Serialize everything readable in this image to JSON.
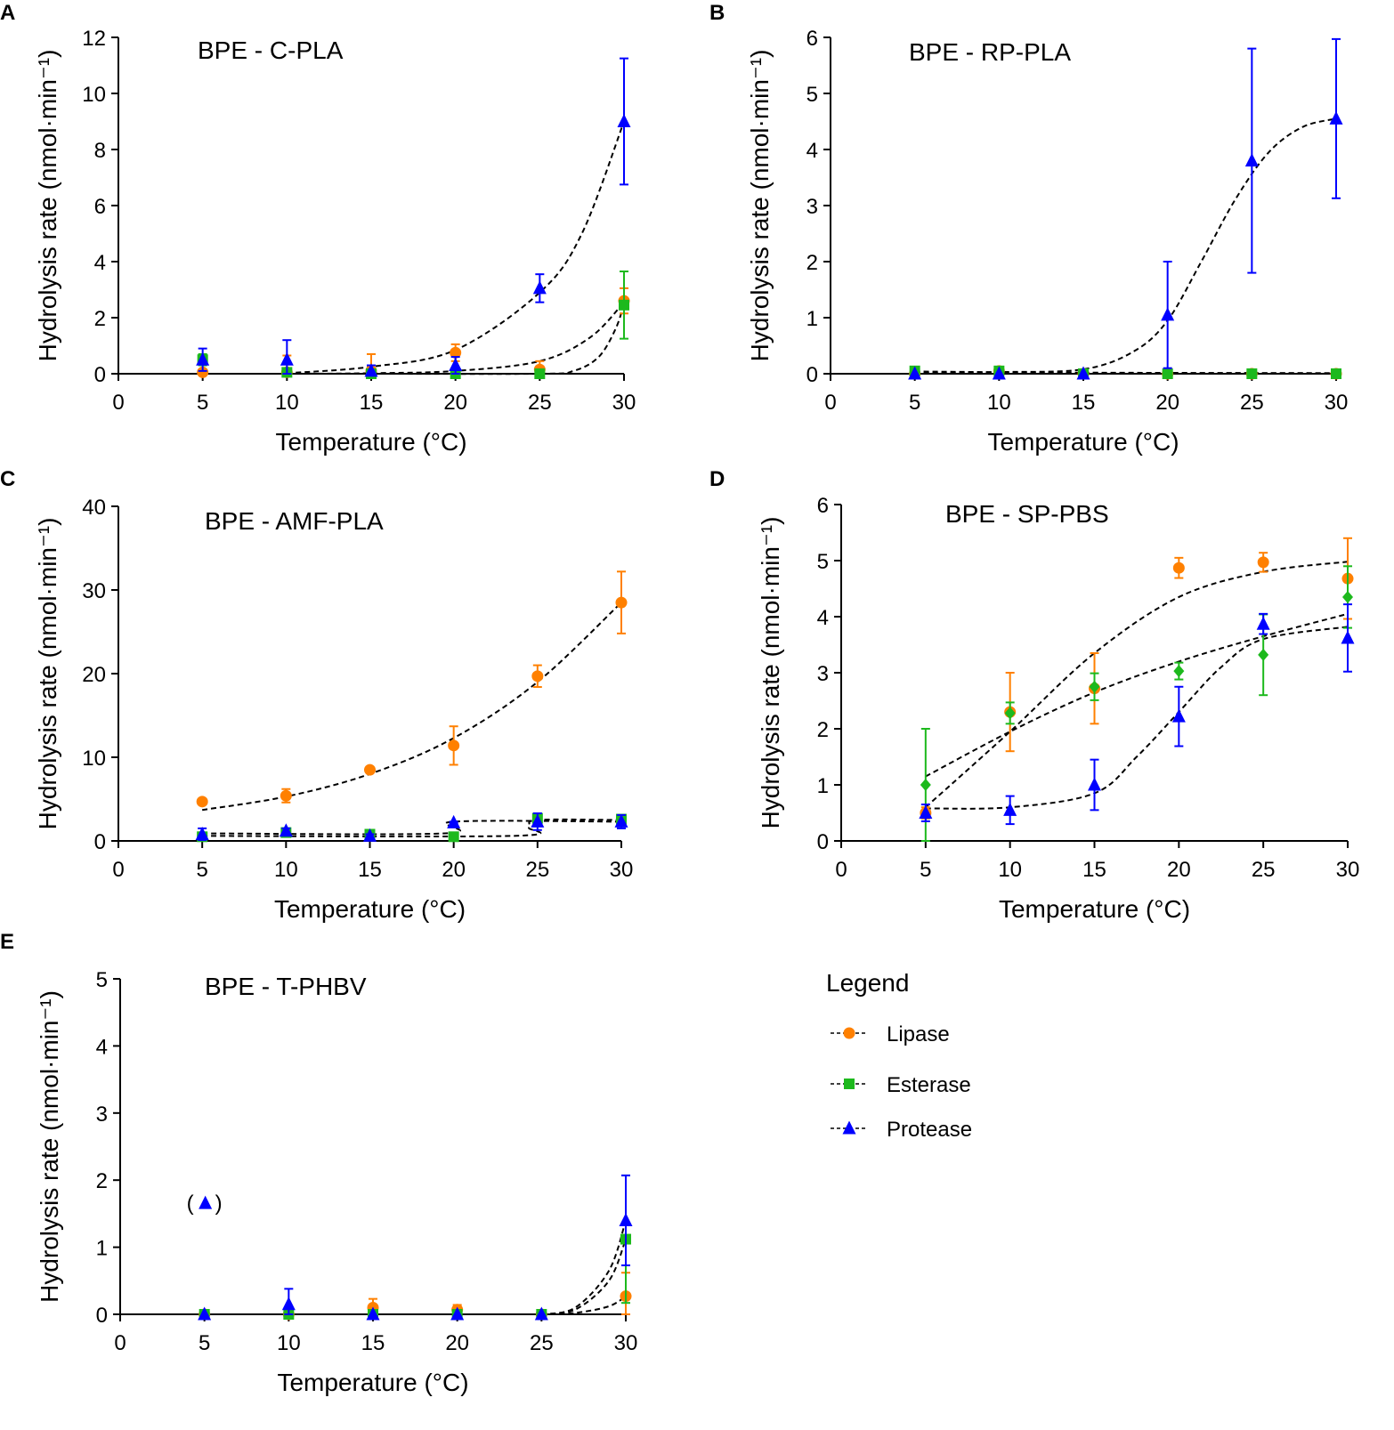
{
  "colors": {
    "lipase": "#FF8000",
    "esterase": "#1DB91D",
    "protease": "#0000FF",
    "fit": "#000000"
  },
  "legend": {
    "title": "Legend",
    "items": [
      {
        "label": "Lipase",
        "marker": "circle",
        "color": "#FF8000"
      },
      {
        "label": "Esterase",
        "marker": "square",
        "color": "#1DB91D"
      },
      {
        "label": "Protease",
        "marker": "triangle",
        "color": "#0000FF"
      }
    ]
  },
  "chart_data": [
    {
      "panel": "A",
      "type": "scatter",
      "title": "BPE - C-PLA",
      "xlabel": "Temperature (°C)",
      "ylabel": "Hydrolysis rate (nmol·min⁻¹)",
      "xlim": [
        0,
        30
      ],
      "ylim": [
        0,
        12
      ],
      "xticks": [
        0,
        5,
        10,
        15,
        20,
        25,
        30
      ],
      "yticks": [
        0,
        2,
        4,
        6,
        8,
        10,
        12
      ],
      "x": [
        5,
        10,
        15,
        20,
        25,
        30
      ],
      "series": [
        {
          "name": "Lipase",
          "marker": "circle",
          "values": [
            0.05,
            0.05,
            0.1,
            0.75,
            0.15,
            2.6
          ],
          "errors": [
            0.05,
            0.6,
            0.6,
            0.3,
            0.3,
            0.45
          ],
          "fit": [
            [
              5,
              0
            ],
            [
              10,
              0
            ],
            [
              15,
              0.02
            ],
            [
              20,
              0.1
            ],
            [
              25,
              0.45
            ],
            [
              28,
              1.3
            ],
            [
              30,
              2.55
            ]
          ]
        },
        {
          "name": "Esterase",
          "marker": "square",
          "values": [
            0.5,
            0.05,
            0,
            0,
            0,
            2.45
          ],
          "errors": [
            0.2,
            0.05,
            0.05,
            0.05,
            0.05,
            1.2
          ],
          "fit": [
            [
              5,
              0
            ],
            [
              15,
              0
            ],
            [
              25,
              0
            ],
            [
              27,
              0.1
            ],
            [
              28.5,
              0.6
            ],
            [
              29.5,
              1.6
            ],
            [
              30,
              2.5
            ]
          ]
        },
        {
          "name": "Protease",
          "marker": "triangle",
          "values": [
            0.5,
            0.5,
            0.1,
            0.3,
            3.05,
            9.0
          ],
          "errors": [
            0.4,
            0.7,
            0.2,
            0.3,
            0.5,
            2.25
          ],
          "fit": [
            [
              10,
              0.02
            ],
            [
              15,
              0.25
            ],
            [
              20,
              0.85
            ],
            [
              25,
              2.9
            ],
            [
              27.5,
              5.0
            ],
            [
              30,
              9.0
            ]
          ]
        }
      ]
    },
    {
      "panel": "B",
      "type": "scatter",
      "title": "BPE - RP-PLA",
      "xlabel": "Temperature (°C)",
      "ylabel": "Hydrolysis rate (nmol·min⁻¹)",
      "xlim": [
        0,
        30
      ],
      "ylim": [
        0,
        6
      ],
      "xticks": [
        0,
        5,
        10,
        15,
        20,
        25,
        30
      ],
      "yticks": [
        0,
        1,
        2,
        3,
        4,
        5,
        6
      ],
      "x": [
        5,
        10,
        15,
        20,
        25,
        30
      ],
      "series": [
        {
          "name": "Lipase",
          "marker": "circle",
          "values": [
            0,
            0.05,
            0,
            0,
            0,
            0
          ],
          "errors": [
            0,
            0,
            0,
            0,
            0,
            0
          ],
          "fit": [
            [
              5,
              0.01
            ],
            [
              30,
              0.01
            ]
          ]
        },
        {
          "name": "Esterase",
          "marker": "square",
          "values": [
            0.05,
            0.05,
            0,
            0,
            0,
            0
          ],
          "errors": [
            0,
            0,
            0,
            0,
            0,
            0
          ],
          "fit": [
            [
              5,
              0.04
            ],
            [
              15,
              0.02
            ],
            [
              30,
              0.01
            ]
          ]
        },
        {
          "name": "Protease",
          "marker": "triangle",
          "values": [
            0,
            0,
            0,
            1.05,
            3.8,
            4.55
          ],
          "errors": [
            0,
            0,
            0,
            0.95,
            2.0,
            1.42
          ],
          "fit": [
            [
              5,
              0.02
            ],
            [
              10,
              0.03
            ],
            [
              15,
              0.08
            ],
            [
              18,
              0.4
            ],
            [
              20,
              0.95
            ],
            [
              22,
              2.0
            ],
            [
              24,
              3.1
            ],
            [
              26,
              3.95
            ],
            [
              28,
              4.4
            ],
            [
              30,
              4.55
            ]
          ]
        }
      ]
    },
    {
      "panel": "C",
      "type": "scatter",
      "title": "BPE - AMF-PLA",
      "xlabel": "Temperature (°C)",
      "ylabel": "Hydrolysis rate (nmol·min⁻¹)",
      "xlim": [
        0,
        30
      ],
      "ylim": [
        0,
        40
      ],
      "xticks": [
        0,
        5,
        10,
        15,
        20,
        25,
        30
      ],
      "yticks": [
        0,
        10,
        20,
        30,
        40
      ],
      "x": [
        5,
        10,
        15,
        20,
        25,
        30
      ],
      "series": [
        {
          "name": "Lipase",
          "marker": "circle",
          "values": [
            4.7,
            5.4,
            8.5,
            11.4,
            19.7,
            28.5
          ],
          "errors": [
            0,
            0.8,
            0,
            2.3,
            1.3,
            3.7
          ],
          "fit": [
            [
              5,
              3.7
            ],
            [
              10,
              5.3
            ],
            [
              15,
              8.0
            ],
            [
              20,
              12.3
            ],
            [
              25,
              19.0
            ],
            [
              30,
              28.5
            ]
          ]
        },
        {
          "name": "Esterase",
          "marker": "square",
          "values": [
            0.5,
            1.0,
            0.8,
            0.5,
            2.7,
            2.6
          ],
          "errors": [
            0.2,
            0.3,
            0.2,
            0.1,
            0.6,
            0.5
          ],
          "fit": [
            [
              5,
              0.6
            ],
            [
              23.5,
              0.6
            ],
            [
              24.5,
              1.6
            ],
            [
              25,
              2.5
            ],
            [
              30,
              2.5
            ]
          ]
        },
        {
          "name": "Protease",
          "marker": "triangle",
          "values": [
            0.8,
            1.2,
            0.6,
            2.2,
            2.3,
            2.3
          ],
          "errors": [
            0.7,
            0.3,
            0.2,
            0.1,
            1.0,
            0.8
          ],
          "fit": [
            [
              5,
              0.9
            ],
            [
              19.5,
              0.9
            ],
            [
              20,
              2.3
            ],
            [
              30,
              2.3
            ]
          ]
        }
      ]
    },
    {
      "panel": "D",
      "type": "scatter",
      "title": "BPE - SP-PBS",
      "xlabel": "Temperature (°C)",
      "ylabel": "Hydrolysis rate (nmol·min⁻¹)",
      "xlim": [
        0,
        30
      ],
      "ylim": [
        0,
        6
      ],
      "xticks": [
        0,
        5,
        10,
        15,
        20,
        25,
        30
      ],
      "yticks": [
        0,
        1,
        2,
        3,
        4,
        5,
        6
      ],
      "x": [
        5,
        10,
        15,
        20,
        25,
        30
      ],
      "series": [
        {
          "name": "Lipase",
          "marker": "circle",
          "values": [
            0.5,
            2.3,
            2.72,
            4.87,
            4.97,
            4.68
          ],
          "errors": [
            0.1,
            0.7,
            0.63,
            0.18,
            0.17,
            0.72
          ],
          "fit": [
            [
              5,
              0.6
            ],
            [
              10,
              1.95
            ],
            [
              15,
              3.35
            ],
            [
              20,
              4.35
            ],
            [
              25,
              4.8
            ],
            [
              30,
              4.98
            ]
          ]
        },
        {
          "name": "Esterase",
          "marker": "diamond",
          "values": [
            1.0,
            2.28,
            2.75,
            3.03,
            3.32,
            4.35
          ],
          "errors": [
            1.0,
            0.19,
            0.24,
            0.15,
            0.72,
            0.55
          ],
          "fit": [
            [
              5,
              1.15
            ],
            [
              10,
              1.95
            ],
            [
              15,
              2.65
            ],
            [
              20,
              3.2
            ],
            [
              25,
              3.65
            ],
            [
              30,
              4.05
            ]
          ]
        },
        {
          "name": "Protease",
          "marker": "triangle",
          "values": [
            0.5,
            0.55,
            1.0,
            2.22,
            3.87,
            3.62
          ],
          "errors": [
            0.15,
            0.25,
            0.45,
            0.53,
            0.18,
            0.6
          ],
          "fit": [
            [
              5,
              0.58
            ],
            [
              10,
              0.6
            ],
            [
              15,
              0.85
            ],
            [
              17.5,
              1.5
            ],
            [
              20,
              2.3
            ],
            [
              22.5,
              3.1
            ],
            [
              25,
              3.6
            ],
            [
              30,
              3.82
            ]
          ]
        }
      ]
    },
    {
      "panel": "E",
      "type": "scatter",
      "title": "BPE - T-PHBV",
      "xlabel": "Temperature (°C)",
      "ylabel": "Hydrolysis rate (nmol·min⁻¹)",
      "xlim": [
        0,
        30
      ],
      "ylim": [
        0,
        5
      ],
      "xticks": [
        0,
        5,
        10,
        15,
        20,
        25,
        30
      ],
      "yticks": [
        0,
        1,
        2,
        3,
        4,
        5
      ],
      "x": [
        5,
        10,
        15,
        20,
        25,
        30
      ],
      "annotation": {
        "text": "(▲)",
        "x": 5,
        "y": 1.67,
        "note_value": 1.67
      },
      "series": [
        {
          "name": "Lipase",
          "marker": "circle",
          "values": [
            0,
            0,
            0.1,
            0.07,
            0,
            0.27
          ],
          "errors": [
            0,
            0,
            0.13,
            0.07,
            0,
            0.35
          ],
          "fit": [
            [
              25,
              0
            ],
            [
              27,
              0.02
            ],
            [
              29,
              0.12
            ],
            [
              30,
              0.27
            ]
          ]
        },
        {
          "name": "Esterase",
          "marker": "square",
          "values": [
            0,
            0,
            0,
            0,
            0,
            1.12
          ],
          "errors": [
            0,
            0,
            0,
            0,
            0,
            0.95
          ],
          "fit": [
            [
              25,
              0
            ],
            [
              27,
              0.07
            ],
            [
              29,
              0.5
            ],
            [
              30,
              1.12
            ]
          ]
        },
        {
          "name": "Protease",
          "marker": "triangle",
          "values": [
            0,
            0.15,
            0,
            0,
            0,
            1.4
          ],
          "errors": [
            0,
            0.23,
            0,
            0,
            0,
            0.67
          ],
          "fit": [
            [
              25,
              0
            ],
            [
              27,
              0.1
            ],
            [
              29,
              0.65
            ],
            [
              30,
              1.4
            ]
          ]
        }
      ]
    }
  ]
}
